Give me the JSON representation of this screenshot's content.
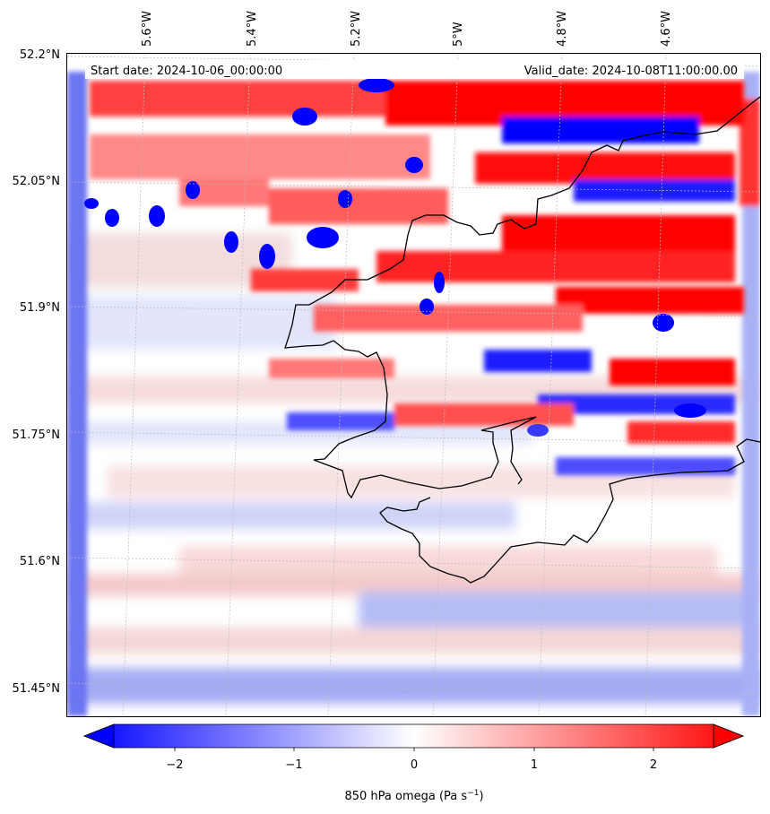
{
  "header": {
    "start_label": "Start date: 2024-10-06_00:00:00",
    "valid_label": "Valid_date: 2024-10-08T11:00:00.00"
  },
  "lat_labels": [
    "52.2°N",
    "52.05°N",
    "51.9°N",
    "51.75°N",
    "51.6°N",
    "51.45°N"
  ],
  "lon_labels": [
    "5.6°W",
    "5.4°W",
    "5.2°W",
    "5°W",
    "4.8°W",
    "4.6°W"
  ],
  "colorbar": {
    "ticks": [
      "−2",
      "−1",
      "0",
      "1",
      "2"
    ],
    "label_main": "850 hPa omega (Pa s",
    "label_exp": "−1",
    "label_close": ")",
    "min": -2.5,
    "max": 2.5,
    "colors": {
      "neg": "#0000ff",
      "zero": "#ffffff",
      "pos": "#ff0000"
    }
  },
  "map": {
    "variable": "omega",
    "level": "850 hPa",
    "colormap": "bwr",
    "coastline_color": "#000000",
    "graticule": "dotted-grey"
  }
}
